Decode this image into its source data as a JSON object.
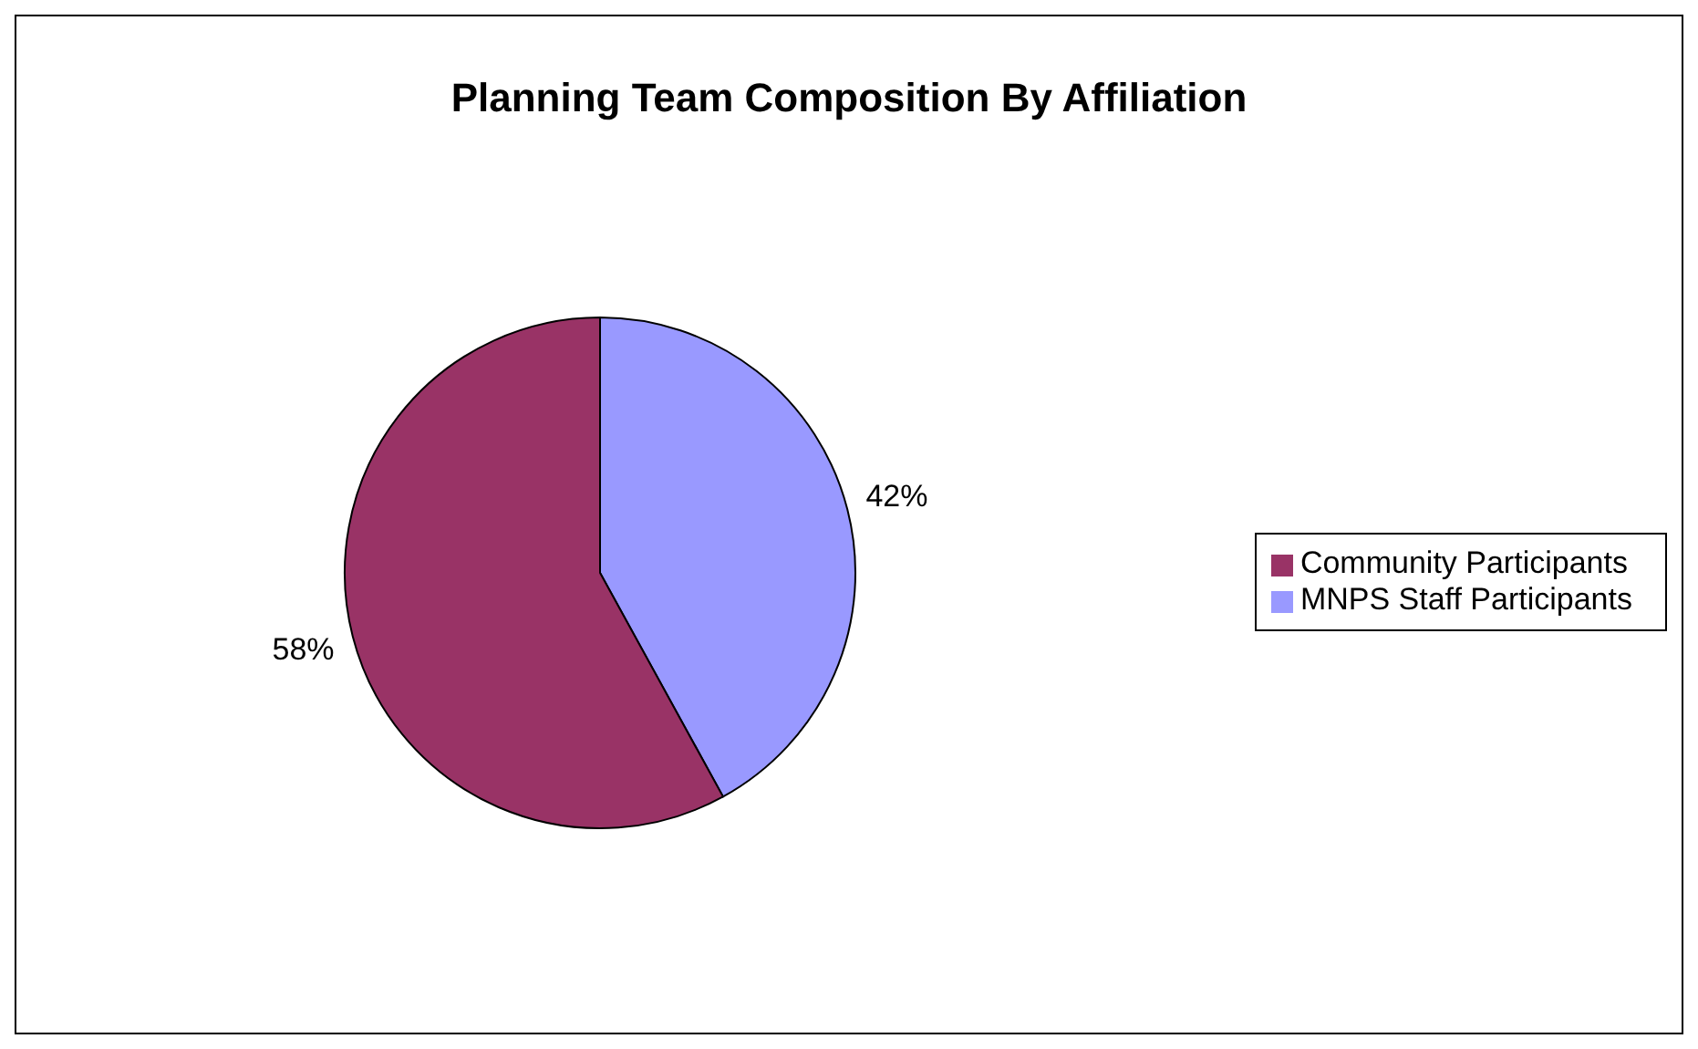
{
  "chart_data": {
    "type": "pie",
    "title": "Planning Team Composition By Affiliation",
    "categories": [
      "MNPS Staff Participants",
      "Community Participants"
    ],
    "values": [
      42,
      58
    ],
    "colors": [
      "#9999ff",
      "#993366"
    ],
    "value_labels": [
      "42%",
      "58%"
    ],
    "legend": "right"
  }
}
